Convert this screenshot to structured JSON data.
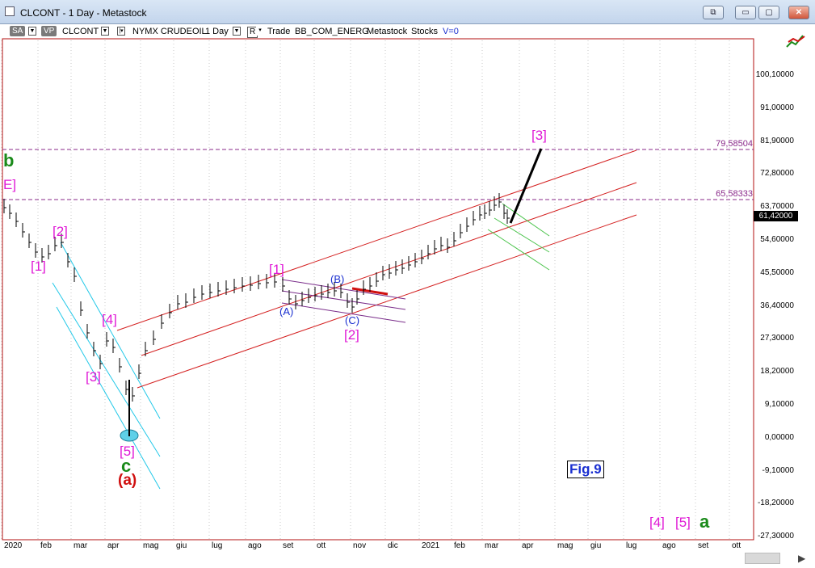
{
  "window": {
    "title": "CLCONT - 1 Day - Metastock",
    "buttons": {
      "restore_label": "⧉",
      "minimize_label": "▭",
      "maximize_label": "▢",
      "close_label": "✕"
    }
  },
  "toolbar": {
    "sa_label": "SA",
    "vp_label": "VP",
    "symbol": "CLCONT",
    "exchange": "NYMX CRUDEOIL",
    "interval": "1 Day",
    "rate_label": "R",
    "trade_label": "Trade",
    "list_name": "BB_COM_ENERG",
    "source": "Metastock",
    "instrument_type": "Stocks",
    "volume": "V=0"
  },
  "y_axis": {
    "ticks": [
      "100,10000",
      "91,00000",
      "81,90000",
      "72,80000",
      "63,70000",
      "54,60000",
      "45,50000",
      "36,40000",
      "27,30000",
      "18,20000",
      "9,10000",
      "0,00000",
      "-9,10000",
      "-18,20000",
      "-27,30000"
    ],
    "current_price": "61,42000"
  },
  "x_axis": {
    "ticks": [
      "2020",
      "feb",
      "mar",
      "apr",
      "mag",
      "giu",
      "lug",
      "ago",
      "set",
      "ott",
      "nov",
      "dic",
      "2021",
      "feb",
      "mar",
      "apr",
      "mag",
      "giu",
      "lug",
      "ago",
      "set",
      "ott"
    ]
  },
  "levels": {
    "upper": "79,58504",
    "lower": "65,58333"
  },
  "wave_labels": {
    "b_top": "b",
    "e_top": "E]",
    "w1_left": "[1]",
    "w2_left": "[2]",
    "w3_left": "[3]",
    "w4_left": "[4]",
    "w5_left": "[5]",
    "c_low": "c",
    "a_low": "(a)",
    "w1_mid": "[1]",
    "a_mid": "(A)",
    "b_mid": "(B)",
    "c_mid": "(C)",
    "w2_mid": "[2]",
    "w3_target": "[3]",
    "w4_future": "[4]",
    "w5_future": "[5]",
    "a_future": "a"
  },
  "figure_label": "Fig.9",
  "colors": {
    "channel_red": "#d42020",
    "level_purple": "#8a2a8a",
    "wave_magenta": "#e01ad6",
    "wave_blue": "#1a2fd0",
    "channel_cyan": "#22c8e8",
    "channel_green": "#49c34a",
    "channel_purple": "#7a2d8a",
    "axis_red": "#b31010"
  }
}
